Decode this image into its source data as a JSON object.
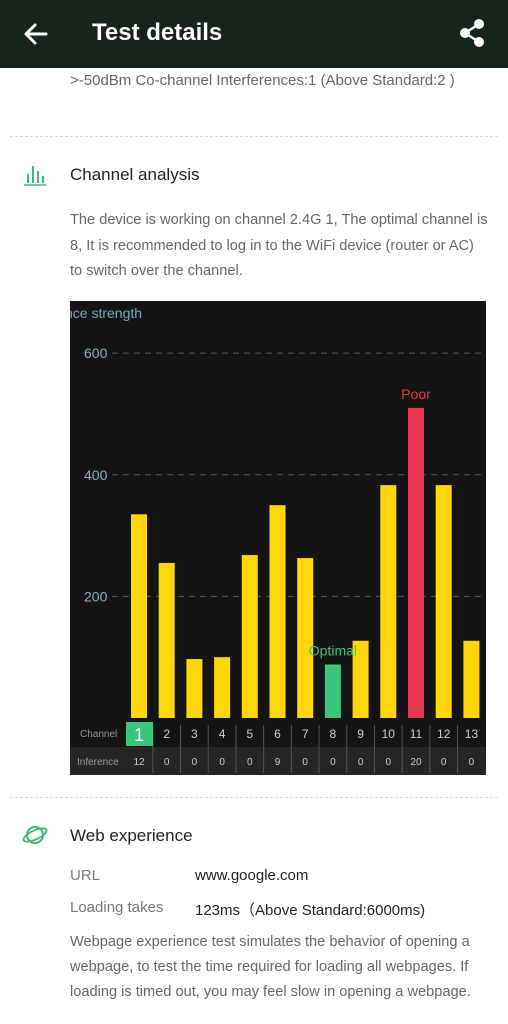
{
  "appbar": {
    "title": "Test details",
    "back_icon": "arrow-left-icon",
    "share_icon": "share-icon"
  },
  "interference_summary": ">-50dBm Co-channel Interferences:1 (Above Standard:2 )",
  "channel_section": {
    "icon": "bar-chart-icon",
    "title": "Channel analysis",
    "description": "The device is working on channel 2.4G 1, The optimal channel is 8, It is recommended to log in to the WiFi device (router or AC) to switch over the channel."
  },
  "chart_data": {
    "type": "bar",
    "ylabel": "nce strength",
    "ylim": [
      0,
      620
    ],
    "yticks": [
      200,
      400,
      600
    ],
    "grid": true,
    "categories": [
      "1",
      "2",
      "3",
      "4",
      "5",
      "6",
      "7",
      "8",
      "9",
      "10",
      "11",
      "12",
      "13"
    ],
    "values": [
      335,
      255,
      97,
      100,
      268,
      350,
      263,
      88,
      127,
      383,
      510,
      383,
      127
    ],
    "inference": [
      "12",
      "0",
      "0",
      "0",
      "0",
      "9",
      "0",
      "0",
      "0",
      "0",
      "20",
      "0",
      "0"
    ],
    "row_labels": {
      "channel": "Channel",
      "inference": "Inference"
    },
    "current_channel": "1",
    "annotations": [
      {
        "category": "8",
        "text": "Optimal",
        "color": "#3cc47c"
      },
      {
        "category": "11",
        "text": "Poor",
        "color": "#e8344e"
      }
    ],
    "colors": {
      "default": "#ffd60a",
      "optimal": "#3cc47c",
      "poor": "#e8344e"
    }
  },
  "web_section": {
    "icon": "planet-icon",
    "title": "Web experience",
    "url_label": "URL",
    "url_value": "www.google.com",
    "loading_label": "Loading takes",
    "loading_value": "123ms（Above Standard:6000ms)",
    "description": "Webpage experience test simulates the behavior of opening a webpage, to test the time required for loading all webpages. If loading is timed out, you may feel slow in opening a webpage."
  }
}
